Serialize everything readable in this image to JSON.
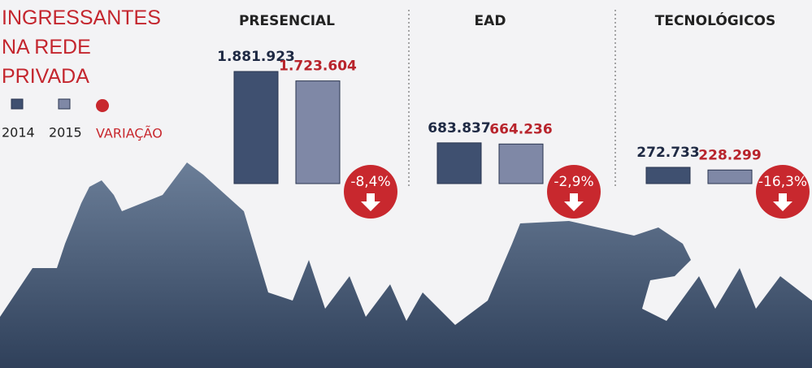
{
  "chart_data": {
    "type": "bar",
    "title": "INGRESSANTES NA REDE PRIVADA",
    "categories": [
      "PRESENCIAL",
      "EAD",
      "TECNOLÓGICOS"
    ],
    "series": [
      {
        "name": "2014",
        "color": "#3f5070",
        "label_color": "#1f2a44",
        "values": [
          1881923,
          683837,
          272733
        ],
        "value_labels": [
          "1.881.923",
          "683.837",
          "272.733"
        ]
      },
      {
        "name": "2015",
        "color": "#7f88a6",
        "label_color": "#b8242c",
        "values": [
          1723604,
          664236,
          228299
        ],
        "value_labels": [
          "1.723.604",
          "664.236",
          "228.299"
        ]
      }
    ],
    "variation": {
      "name": "VARIAÇÃO",
      "color": "#c8282e",
      "values": [
        -8.4,
        -2.9,
        -16.3
      ],
      "value_labels": [
        "-8,4%",
        "-2,9%",
        "-16,3%"
      ]
    }
  }
}
